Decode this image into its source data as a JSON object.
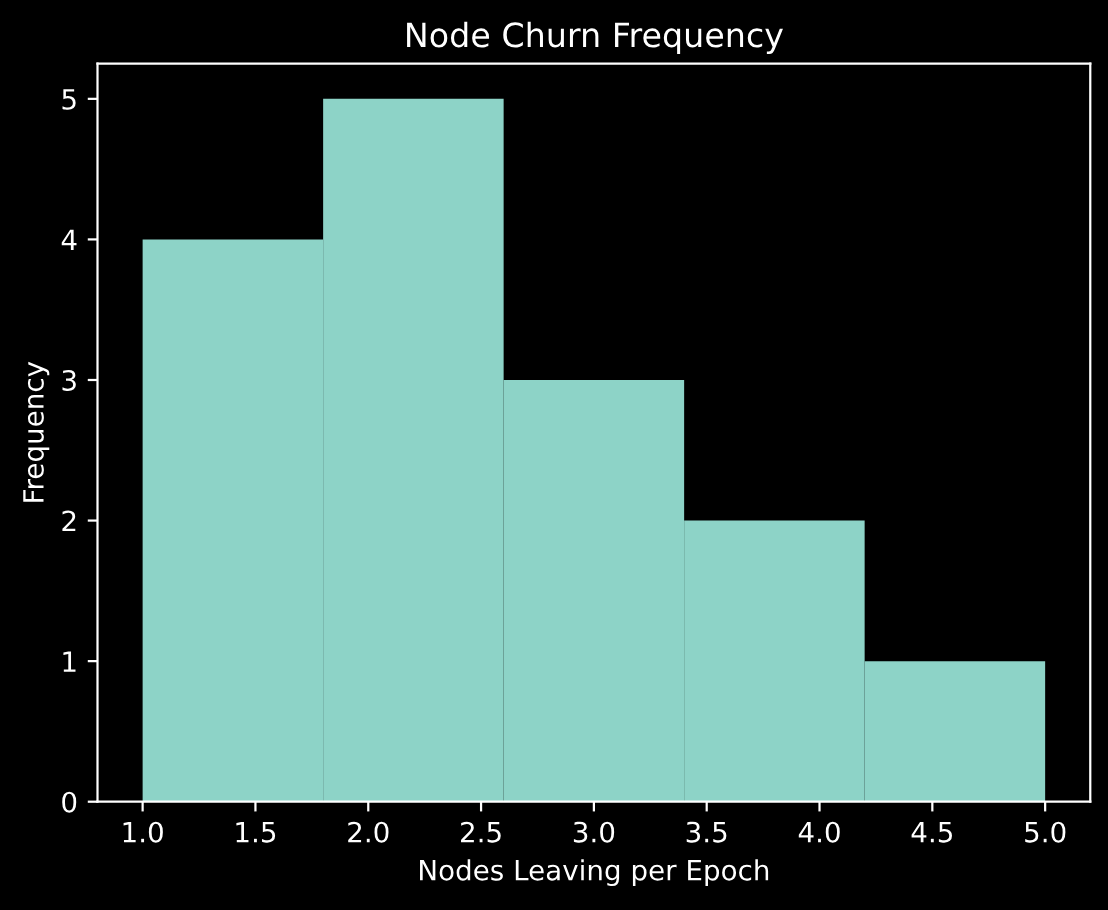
{
  "chart_data": {
    "type": "histogram",
    "title": "Node Churn Frequency",
    "xlabel": "Nodes Leaving per Epoch",
    "ylabel": "Frequency",
    "bins": [
      1.0,
      1.8,
      2.6,
      3.4,
      4.2,
      5.0
    ],
    "values": [
      4,
      5,
      3,
      2,
      1
    ],
    "color": "#8dd3c7",
    "xlim": [
      0.8,
      5.2
    ],
    "xticks": [
      {
        "value": 1.0,
        "label": "1.0"
      },
      {
        "value": 1.5,
        "label": "1.5"
      },
      {
        "value": 2.0,
        "label": "2.0"
      },
      {
        "value": 2.5,
        "label": "2.5"
      },
      {
        "value": 3.0,
        "label": "3.0"
      },
      {
        "value": 3.5,
        "label": "3.5"
      },
      {
        "value": 4.0,
        "label": "4.0"
      },
      {
        "value": 4.5,
        "label": "4.5"
      },
      {
        "value": 5.0,
        "label": "5.0"
      }
    ],
    "ylim": [
      0,
      5.25
    ],
    "yticks": [
      0,
      1,
      2,
      3,
      4,
      5
    ],
    "grid": false
  }
}
